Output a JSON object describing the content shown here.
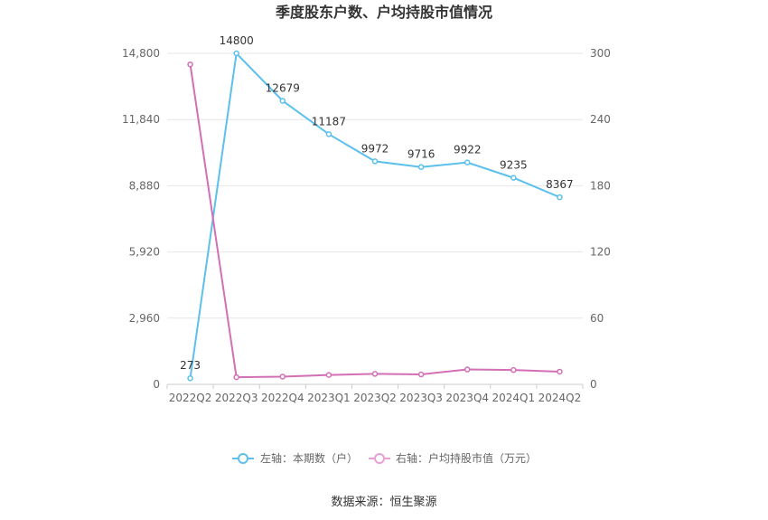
{
  "chart_data": {
    "type": "line",
    "title": "季度股东户数、户均持股市值情况",
    "categories": [
      "2022Q2",
      "2022Q3",
      "2022Q4",
      "2023Q1",
      "2023Q2",
      "2023Q3",
      "2023Q4",
      "2024Q1",
      "2024Q2"
    ],
    "left_axis": {
      "ticks": [
        "0",
        "2,960",
        "5,920",
        "8,880",
        "11,840",
        "14,800"
      ],
      "ylim": [
        0,
        14800
      ]
    },
    "right_axis": {
      "ticks": [
        "0",
        "60",
        "120",
        "180",
        "240",
        "300"
      ],
      "ylim": [
        0,
        300
      ]
    },
    "series": [
      {
        "name": "左轴：本期数（户）",
        "axis": "left",
        "color": "#5bc0eb",
        "values": [
          273,
          14800,
          12679,
          11187,
          9972,
          9716,
          9922,
          9235,
          8367
        ],
        "labels": [
          "273",
          "14800",
          "12679",
          "11187",
          "9972",
          "9716",
          "9922",
          "9235",
          "8367"
        ]
      },
      {
        "name": "右轴：户均持股市值（万元）",
        "axis": "right",
        "color": "#d36fb5",
        "values": [
          290,
          6.5,
          7,
          8.5,
          9.5,
          9,
          13.5,
          13,
          11.5
        ]
      }
    ],
    "grid": true,
    "legend_position": "bottom"
  },
  "source_text": "数据来源：恒生聚源"
}
